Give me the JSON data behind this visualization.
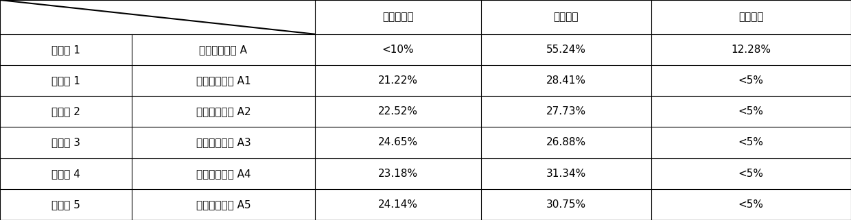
{
  "col_headers": [
    "线虫染病率",
    "芹菜增产",
    "番茄增产"
  ],
  "row_headers_col1": [
    "实施例 1",
    "对比例 1",
    "对比例 2",
    "对比例 3",
    "对比例 4",
    "对比例 5"
  ],
  "row_headers_col2": [
    "固体微生物肥 A",
    "固体微生物肥 A1",
    "固体微生物肥 A2",
    "固体微生物肥 A3",
    "固体微生物肥 A4",
    "固体微生物肥 A5"
  ],
  "data": [
    [
      "<10%",
      "55.24%",
      "12.28%"
    ],
    [
      "21.22%",
      "28.41%",
      "<5%"
    ],
    [
      "22.52%",
      "27.73%",
      "<5%"
    ],
    [
      "24.65%",
      "26.88%",
      "<5%"
    ],
    [
      "23.18%",
      "31.34%",
      "<5%"
    ],
    [
      "24.14%",
      "30.75%",
      "<5%"
    ]
  ],
  "background_color": "#ffffff",
  "line_color": "#000000",
  "text_color": "#000000",
  "font_size": 11,
  "header_font_size": 11,
  "fig_width": 12.4,
  "fig_height": 3.21,
  "dpi": 100
}
